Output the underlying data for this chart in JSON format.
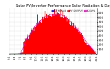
{
  "title": "Solar PV/Inverter Performance Solar Radiation & Day Average per Minute",
  "title_fontsize": 3.8,
  "bar_color": "#ff0000",
  "avg_line_color": "#ff00cc",
  "background_color": "#ffffff",
  "plot_bg_color": "#ffffff",
  "grid_color": "#aaaaaa",
  "left_panel_color": "#222222",
  "ylim": [
    0,
    1000
  ],
  "yticks": [
    100,
    200,
    300,
    400,
    500,
    600,
    700,
    800,
    900
  ],
  "ylabel_fontsize": 3.2,
  "xlabel_fontsize": 2.6,
  "legend_labels": [
    "C:THER=0",
    "PV OUTPUT",
    "BCGV%"
  ],
  "legend_colors": [
    "#0000ff",
    "#ff0000",
    "#ff00cc"
  ],
  "num_points": 280
}
